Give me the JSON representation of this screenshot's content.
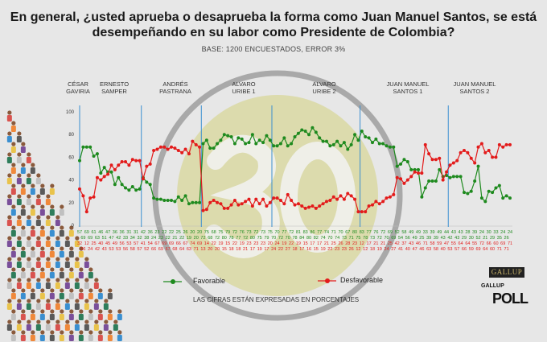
{
  "title": "En general, ¿usted aprueba o desaprueba la forma como Juan Manuel Santos, se está desempeñando en su labor como Presidente de Colombia?",
  "subtitle": "BASE: 1200 ENCUESTADOS, ERROR 3%",
  "note": "LAS CIFRAS ESTÁN EXPRESADAS EN PORCENTAJES",
  "watermark": "30",
  "logos": {
    "gallup": "GALLUP",
    "poll_small": "GALLUP",
    "poll_big": "POLL"
  },
  "colors": {
    "favorable": "#1e8a1e",
    "unfavorable": "#e31b1b",
    "divider": "#3a8fd0",
    "background": "#e7e7e7"
  },
  "chart_data": {
    "type": "line",
    "title": "En general, ¿usted aprueba o desaprueba la forma como Juan Manuel Santos, se está desempeñando en su labor como Presidente de Colombia?",
    "ylim": [
      0,
      100
    ],
    "yticks": [
      "0",
      "20",
      "40",
      "60",
      "80",
      "100"
    ],
    "legend": "bottom",
    "periods": [
      {
        "name": "CÉSAR GAVIRIA",
        "start": 0,
        "end": 4
      },
      {
        "name": "ERNESTO SAMPER",
        "start": 5,
        "end": 17
      },
      {
        "name": "ANDRÉS PASTRANA",
        "start": 18,
        "end": 34
      },
      {
        "name": "ALVARO URIBE 1",
        "start": 35,
        "end": 54
      },
      {
        "name": "ALVARO URIBE 2",
        "start": 55,
        "end": 79
      },
      {
        "name": "JUAN MANUEL SANTOS 1",
        "start": 80,
        "end": 104
      },
      {
        "name": "JUAN MANUEL SANTOS 2",
        "start": 105,
        "end": 122
      }
    ],
    "dividers": [
      0,
      17.5,
      34.5,
      54.5,
      79.5,
      104.5
    ],
    "series": [
      {
        "name": "Favorable",
        "values": [
          57,
          69,
          69,
          69,
          61,
          63,
          46,
          51,
          47,
          47,
          36,
          42,
          36,
          33,
          31,
          34,
          31,
          32,
          42,
          38,
          36,
          24,
          23,
          23,
          22,
          22,
          22,
          21,
          25,
          22,
          26,
          19,
          20,
          20,
          20,
          72,
          75,
          68,
          68,
          72,
          75,
          80,
          79,
          78,
          72,
          77,
          76,
          72,
          73,
          80,
          72,
          75,
          73,
          79,
          75,
          70,
          70,
          72,
          77,
          70,
          72,
          78,
          81,
          84,
          83,
          80,
          86,
          82,
          77,
          74,
          74,
          70,
          71,
          74,
          70,
          73,
          67,
          71,
          80,
          75,
          83,
          78,
          77,
          73,
          76,
          72,
          72,
          70,
          69,
          69,
          52,
          54,
          58,
          56,
          49,
          49,
          49,
          25,
          33,
          39,
          39,
          39,
          49,
          43,
          44,
          42,
          43,
          43,
          43,
          29,
          28,
          30,
          39,
          52,
          24,
          21,
          30,
          29,
          33,
          35,
          24,
          26,
          24
        ]
      },
      {
        "name": "Desfavorable",
        "values": [
          32,
          26,
          12,
          24,
          25,
          42,
          40,
          43,
          45,
          53,
          49,
          53,
          56,
          56,
          53,
          58,
          57,
          57,
          41,
          52,
          54,
          66,
          67,
          69,
          69,
          67,
          69,
          68,
          66,
          64,
          67,
          63,
          74,
          71,
          69,
          13,
          14,
          20,
          22,
          20,
          19,
          15,
          15,
          18,
          22,
          18,
          19,
          21,
          23,
          17,
          23,
          19,
          23,
          17,
          20,
          24,
          24,
          22,
          19,
          27,
          22,
          18,
          19,
          17,
          15,
          16,
          17,
          15,
          17,
          19,
          21,
          22,
          25,
          23,
          26,
          23,
          28,
          26,
          23,
          12,
          12,
          12,
          17,
          18,
          21,
          19,
          21,
          24,
          25,
          27,
          42,
          41,
          37,
          40,
          43,
          47,
          46,
          46,
          71,
          63,
          58,
          58,
          59,
          40,
          47,
          53,
          55,
          57,
          64,
          66,
          64,
          59,
          55,
          69,
          72,
          64,
          66,
          60,
          60,
          71,
          69,
          71,
          71
        ]
      }
    ]
  }
}
